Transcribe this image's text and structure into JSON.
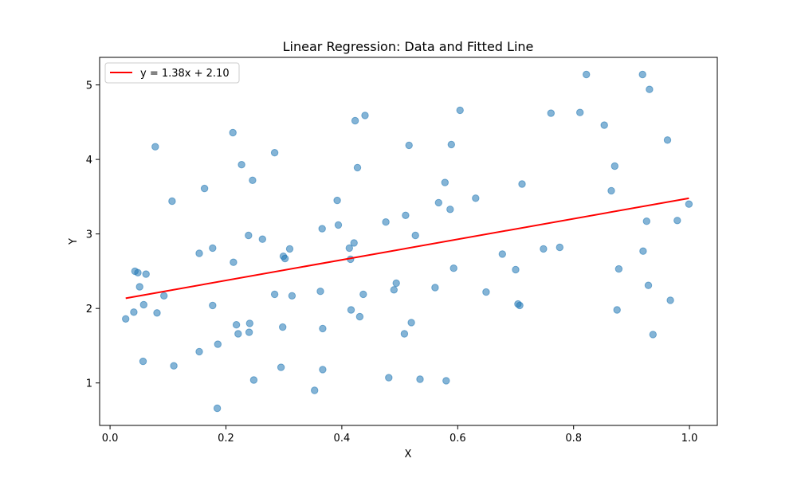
{
  "chart_data": {
    "type": "scatter",
    "title": "Linear Regression: Data and Fitted Line",
    "xlabel": "X",
    "ylabel": "Y",
    "xlim": [
      -0.018,
      1.048
    ],
    "ylim": [
      0.43,
      5.37
    ],
    "xticks": [
      0.0,
      0.2,
      0.4,
      0.6,
      0.8,
      1.0
    ],
    "xtick_labels": [
      "0.0",
      "0.2",
      "0.4",
      "0.6",
      "0.8",
      "1.0"
    ],
    "yticks": [
      1,
      2,
      3,
      4,
      5
    ],
    "ytick_labels": [
      "1",
      "2",
      "3",
      "4",
      "5"
    ],
    "grid": false,
    "legend_position": "upper-left",
    "colors": {
      "points": "#1f77b4",
      "fit_line": "#ff0000"
    },
    "series": [
      {
        "type": "scatter",
        "points": [
          [
            0.027,
            1.86
          ],
          [
            0.041,
            1.95
          ],
          [
            0.043,
            2.5
          ],
          [
            0.048,
            2.48
          ],
          [
            0.051,
            2.29
          ],
          [
            0.057,
            1.29
          ],
          [
            0.058,
            2.05
          ],
          [
            0.062,
            2.46
          ],
          [
            0.078,
            4.17
          ],
          [
            0.081,
            1.94
          ],
          [
            0.093,
            2.17
          ],
          [
            0.107,
            3.44
          ],
          [
            0.11,
            1.23
          ],
          [
            0.154,
            2.74
          ],
          [
            0.154,
            1.42
          ],
          [
            0.163,
            3.61
          ],
          [
            0.177,
            2.04
          ],
          [
            0.177,
            2.81
          ],
          [
            0.185,
            0.66
          ],
          [
            0.186,
            1.52
          ],
          [
            0.212,
            4.36
          ],
          [
            0.213,
            2.62
          ],
          [
            0.218,
            1.78
          ],
          [
            0.221,
            1.66
          ],
          [
            0.227,
            3.93
          ],
          [
            0.239,
            2.98
          ],
          [
            0.24,
            1.68
          ],
          [
            0.241,
            1.8
          ],
          [
            0.246,
            3.72
          ],
          [
            0.248,
            1.04
          ],
          [
            0.263,
            2.93
          ],
          [
            0.284,
            4.09
          ],
          [
            0.284,
            2.19
          ],
          [
            0.295,
            1.21
          ],
          [
            0.298,
            1.75
          ],
          [
            0.299,
            2.7
          ],
          [
            0.302,
            2.67
          ],
          [
            0.31,
            2.8
          ],
          [
            0.314,
            2.17
          ],
          [
            0.353,
            0.9
          ],
          [
            0.363,
            2.23
          ],
          [
            0.366,
            3.07
          ],
          [
            0.367,
            1.18
          ],
          [
            0.367,
            1.73
          ],
          [
            0.392,
            3.45
          ],
          [
            0.394,
            3.12
          ],
          [
            0.413,
            2.81
          ],
          [
            0.415,
            2.66
          ],
          [
            0.416,
            1.98
          ],
          [
            0.421,
            2.88
          ],
          [
            0.423,
            4.52
          ],
          [
            0.427,
            3.89
          ],
          [
            0.431,
            1.89
          ],
          [
            0.437,
            2.19
          ],
          [
            0.44,
            4.59
          ],
          [
            0.476,
            3.16
          ],
          [
            0.481,
            1.07
          ],
          [
            0.49,
            2.25
          ],
          [
            0.494,
            2.34
          ],
          [
            0.508,
            1.66
          ],
          [
            0.51,
            3.25
          ],
          [
            0.516,
            4.19
          ],
          [
            0.52,
            1.81
          ],
          [
            0.527,
            2.98
          ],
          [
            0.535,
            1.05
          ],
          [
            0.561,
            2.28
          ],
          [
            0.567,
            3.42
          ],
          [
            0.578,
            3.69
          ],
          [
            0.58,
            1.03
          ],
          [
            0.587,
            3.33
          ],
          [
            0.589,
            4.2
          ],
          [
            0.593,
            2.54
          ],
          [
            0.604,
            4.66
          ],
          [
            0.631,
            3.48
          ],
          [
            0.649,
            2.22
          ],
          [
            0.677,
            2.73
          ],
          [
            0.7,
            2.52
          ],
          [
            0.704,
            2.06
          ],
          [
            0.707,
            2.04
          ],
          [
            0.711,
            3.67
          ],
          [
            0.748,
            2.8
          ],
          [
            0.761,
            4.62
          ],
          [
            0.776,
            2.82
          ],
          [
            0.811,
            4.63
          ],
          [
            0.822,
            5.14
          ],
          [
            0.853,
            4.46
          ],
          [
            0.865,
            3.58
          ],
          [
            0.871,
            3.91
          ],
          [
            0.875,
            1.98
          ],
          [
            0.878,
            2.53
          ],
          [
            0.919,
            5.14
          ],
          [
            0.92,
            2.77
          ],
          [
            0.926,
            3.17
          ],
          [
            0.929,
            2.31
          ],
          [
            0.931,
            4.94
          ],
          [
            0.937,
            1.65
          ],
          [
            0.962,
            4.26
          ],
          [
            0.967,
            2.11
          ],
          [
            0.979,
            3.18
          ],
          [
            0.999,
            3.4
          ]
        ]
      },
      {
        "name": "y = 1.38x + 2.10",
        "type": "line",
        "points": [
          [
            0.027,
            2.137
          ],
          [
            0.999,
            3.479
          ]
        ]
      }
    ]
  }
}
